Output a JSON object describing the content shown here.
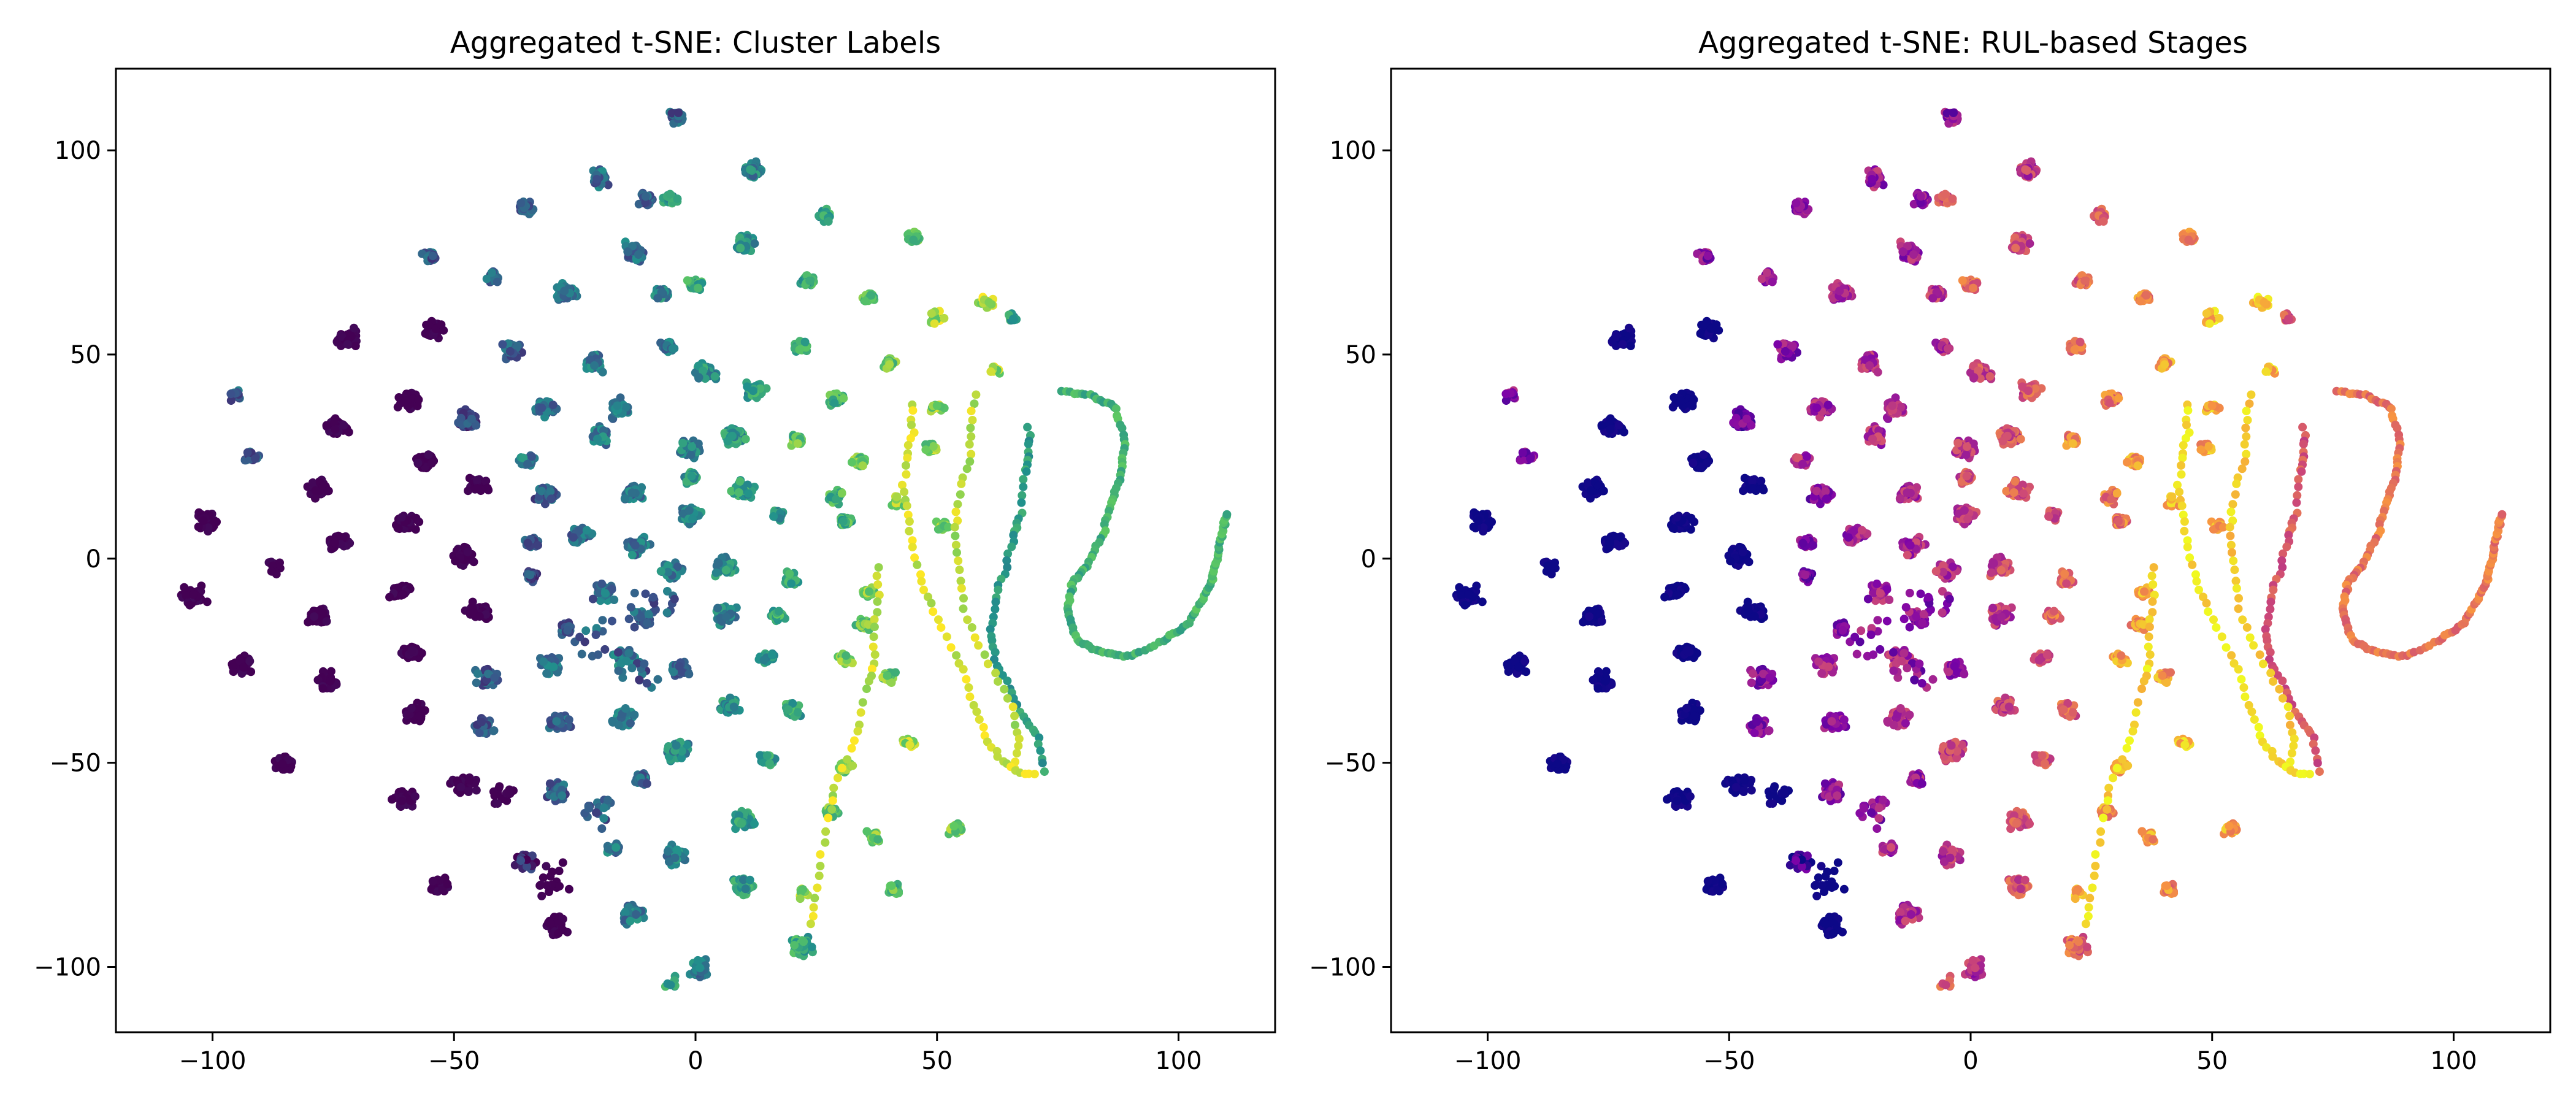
{
  "chart_data": [
    {
      "type": "scatter",
      "title": "Aggregated t-SNE: Cluster Labels",
      "xlabel": "",
      "ylabel": "",
      "xlim": [
        -120,
        120
      ],
      "ylim": [
        -116,
        120
      ],
      "xticks": [
        -100,
        -50,
        0,
        50,
        100
      ],
      "yticks": [
        -100,
        -50,
        0,
        50,
        100
      ],
      "grid": false,
      "colormap": "viridis",
      "colormap_stops": [
        "#440154",
        "#3b528b",
        "#21918c",
        "#5ec962",
        "#fde725"
      ],
      "description_of_points": "Each cluster: x, y, n points, spread, color value (0-1 along colormap)",
      "clusters": [
        [
          -4,
          108,
          35,
          2.5,
          0.3
        ],
        [
          12,
          95,
          40,
          2.5,
          0.45
        ],
        [
          -20,
          93,
          35,
          2.5,
          0.35
        ],
        [
          -35,
          86,
          30,
          2,
          0.3
        ],
        [
          -10,
          88,
          30,
          2,
          0.3
        ],
        [
          -5,
          88,
          30,
          2,
          0.55
        ],
        [
          27,
          84,
          25,
          2,
          0.6
        ],
        [
          45,
          79,
          30,
          2,
          0.75
        ],
        [
          -55,
          74,
          25,
          2,
          0.3
        ],
        [
          -42,
          69,
          25,
          2,
          0.3
        ],
        [
          -13,
          75,
          40,
          3,
          0.35
        ],
        [
          10,
          77,
          40,
          3,
          0.5
        ],
        [
          -27,
          65,
          40,
          3,
          0.35
        ],
        [
          -7,
          65,
          30,
          2,
          0.45
        ],
        [
          0,
          67,
          30,
          2,
          0.6
        ],
        [
          23,
          68,
          30,
          2,
          0.6
        ],
        [
          36,
          64,
          30,
          2,
          0.7
        ],
        [
          50,
          59,
          20,
          2,
          0.85
        ],
        [
          -72,
          54,
          40,
          3,
          0
        ],
        [
          -54,
          56,
          40,
          3,
          0
        ],
        [
          -38,
          51,
          40,
          3,
          0.3
        ],
        [
          -21,
          48,
          40,
          3,
          0.4
        ],
        [
          -6,
          52,
          30,
          2,
          0.4
        ],
        [
          2,
          46,
          40,
          3,
          0.5
        ],
        [
          22,
          52,
          30,
          2,
          0.6
        ],
        [
          40,
          48,
          25,
          2,
          0.75
        ],
        [
          60,
          63,
          15,
          2,
          0.9
        ],
        [
          66,
          59,
          10,
          2,
          0.55
        ],
        [
          62,
          46,
          10,
          1.5,
          0.85
        ],
        [
          -95,
          40,
          15,
          2,
          0.3
        ],
        [
          -59,
          39,
          40,
          3,
          0
        ],
        [
          -47,
          34,
          40,
          3,
          0.2
        ],
        [
          -31,
          37,
          40,
          3,
          0.35
        ],
        [
          -16,
          37,
          40,
          3,
          0.4
        ],
        [
          12,
          41,
          40,
          3,
          0.55
        ],
        [
          29,
          39,
          30,
          2,
          0.65
        ],
        [
          50,
          37,
          15,
          2,
          0.8
        ],
        [
          -74,
          32,
          40,
          3,
          0
        ],
        [
          -56,
          24,
          40,
          3,
          0
        ],
        [
          -35,
          24,
          30,
          2,
          0.4
        ],
        [
          -20,
          30,
          40,
          3,
          0.4
        ],
        [
          -1,
          27,
          40,
          3,
          0.45
        ],
        [
          8,
          30,
          40,
          3,
          0.55
        ],
        [
          21,
          29,
          30,
          2,
          0.7
        ],
        [
          34,
          24,
          30,
          2,
          0.75
        ],
        [
          49,
          27,
          20,
          2,
          0.8
        ],
        [
          -92,
          25,
          20,
          2,
          0.3
        ],
        [
          -78,
          17,
          40,
          3,
          0
        ],
        [
          -60,
          9,
          40,
          3,
          0
        ],
        [
          -45,
          18,
          40,
          3,
          0
        ],
        [
          -31,
          16,
          40,
          3,
          0.3
        ],
        [
          -13,
          16,
          40,
          3,
          0.4
        ],
        [
          -1,
          20,
          30,
          2,
          0.5
        ],
        [
          10,
          17,
          40,
          3,
          0.55
        ],
        [
          29,
          15,
          30,
          2,
          0.65
        ],
        [
          42,
          14,
          20,
          2,
          0.8
        ],
        [
          -101,
          9,
          40,
          3,
          0
        ],
        [
          -74,
          4,
          40,
          3,
          0
        ],
        [
          -48,
          1,
          40,
          3,
          0
        ],
        [
          -34,
          4,
          30,
          2,
          0.3
        ],
        [
          -24,
          6,
          40,
          3,
          0.35
        ],
        [
          -12,
          3,
          40,
          3,
          0.4
        ],
        [
          -1,
          11,
          40,
          3,
          0.45
        ],
        [
          17,
          11,
          30,
          2,
          0.5
        ],
        [
          31,
          9,
          30,
          2,
          0.65
        ],
        [
          51,
          8,
          20,
          2,
          0.8
        ],
        [
          -87,
          -2,
          15,
          2,
          0
        ],
        [
          -104,
          -9,
          40,
          3,
          0
        ],
        [
          -61,
          -8,
          40,
          3,
          0
        ],
        [
          -45,
          -13,
          40,
          3,
          0
        ],
        [
          -34,
          -4,
          30,
          2,
          0.2
        ],
        [
          -19,
          -8,
          40,
          3,
          0.35
        ],
        [
          -5,
          -3,
          40,
          3,
          0.4
        ],
        [
          6,
          -2,
          40,
          3,
          0.5
        ],
        [
          20,
          -5,
          30,
          2,
          0.6
        ],
        [
          36,
          -8,
          20,
          2,
          0.8
        ],
        [
          -78,
          -14,
          40,
          3,
          0
        ],
        [
          -27,
          -17,
          30,
          2,
          0.3
        ],
        [
          -11,
          -15,
          40,
          3,
          0.3
        ],
        [
          6,
          -14,
          40,
          3,
          0.45
        ],
        [
          17,
          -14,
          30,
          2,
          0.6
        ],
        [
          35,
          -16,
          30,
          2,
          0.75
        ],
        [
          -94,
          -26,
          40,
          3,
          0
        ],
        [
          -59,
          -23,
          40,
          3,
          0
        ],
        [
          -43,
          -29,
          40,
          3,
          0.3
        ],
        [
          -30,
          -26,
          40,
          3,
          0.35
        ],
        [
          -15,
          -24,
          40,
          3,
          0.4
        ],
        [
          -3,
          -27,
          40,
          3,
          0.35
        ],
        [
          15,
          -24,
          30,
          2,
          0.55
        ],
        [
          31,
          -25,
          20,
          2,
          0.75
        ],
        [
          -76,
          -30,
          40,
          3,
          0
        ],
        [
          -58,
          -38,
          40,
          3,
          0
        ],
        [
          -44,
          -41,
          40,
          3,
          0.3
        ],
        [
          -28,
          -40,
          40,
          3,
          0.35
        ],
        [
          -15,
          -39,
          40,
          3,
          0.4
        ],
        [
          7,
          -36,
          40,
          3,
          0.5
        ],
        [
          20,
          -37,
          30,
          2,
          0.6
        ],
        [
          40,
          -29,
          20,
          2,
          0.75
        ],
        [
          -85,
          -50,
          40,
          3,
          0
        ],
        [
          -60,
          -59,
          40,
          3,
          0
        ],
        [
          -48,
          -55,
          40,
          3,
          0
        ],
        [
          -29,
          -57,
          40,
          3,
          0.3
        ],
        [
          -11,
          -54,
          30,
          2,
          0.35
        ],
        [
          -4,
          -47,
          40,
          3,
          0.45
        ],
        [
          15,
          -49,
          30,
          2,
          0.55
        ],
        [
          31,
          -51,
          20,
          2,
          0.75
        ],
        [
          44,
          -45,
          20,
          2,
          0.85
        ],
        [
          -53,
          -80,
          40,
          3,
          0
        ],
        [
          -35,
          -74,
          40,
          3,
          0.1
        ],
        [
          -17,
          -71,
          30,
          2,
          0.4
        ],
        [
          -4,
          -73,
          40,
          3,
          0.45
        ],
        [
          10,
          -64,
          40,
          3,
          0.55
        ],
        [
          28,
          -62,
          30,
          2,
          0.75
        ],
        [
          37,
          -68,
          30,
          2,
          0.75
        ],
        [
          54,
          -66,
          30,
          2,
          0.8
        ],
        [
          -29,
          -90,
          40,
          3,
          0
        ],
        [
          -13,
          -87,
          40,
          3,
          0.4
        ],
        [
          10,
          -80,
          40,
          3,
          0.55
        ],
        [
          41,
          -81,
          30,
          2,
          0.7
        ],
        [
          22,
          -95,
          40,
          3,
          0.6
        ],
        [
          1,
          -101,
          40,
          3,
          0.4
        ],
        [
          -5,
          -104,
          10,
          2,
          0.6
        ],
        [
          22,
          -82,
          10,
          2,
          0.8
        ],
        [
          -30,
          -79,
          20,
          5,
          0
        ],
        [
          -20,
          -62,
          20,
          5,
          0.3
        ],
        [
          -40,
          -58,
          15,
          5,
          0
        ],
        [
          -12,
          -28,
          15,
          6,
          0.3
        ],
        [
          -8,
          -10,
          15,
          6,
          0.3
        ],
        [
          -20,
          -20,
          15,
          6,
          0.3
        ]
      ],
      "curves": [
        {
          "points": [
            [
              76,
              41
            ],
            [
              82,
              40
            ],
            [
              87,
              37
            ],
            [
              89,
              28
            ],
            [
              88,
              20
            ],
            [
              86,
              13
            ],
            [
              84,
              5
            ],
            [
              81,
              -2
            ],
            [
              78,
              -6
            ],
            [
              77,
              -13
            ],
            [
              79,
              -20
            ],
            [
              84,
              -23
            ],
            [
              90,
              -24
            ],
            [
              97,
              -20
            ],
            [
              102,
              -16
            ],
            [
              105,
              -10
            ],
            [
              107,
              -5
            ],
            [
              108,
              0
            ],
            [
              109,
              6
            ],
            [
              110,
              11
            ]
          ],
          "n": 140,
          "spread": 0.4,
          "c": 0.65
        },
        {
          "points": [
            [
              69,
              32
            ],
            [
              69,
              25
            ],
            [
              68,
              20
            ],
            [
              67,
              10
            ],
            [
              66,
              5
            ],
            [
              64,
              -3
            ],
            [
              62,
              -10
            ],
            [
              61,
              -18
            ],
            [
              62,
              -25
            ],
            [
              65,
              -32
            ],
            [
              68,
              -39
            ],
            [
              71,
              -44
            ],
            [
              72,
              -52
            ]
          ],
          "n": 60,
          "spread": 0.6,
          "c": 0.55
        },
        {
          "points": [
            [
              58,
              40
            ],
            [
              57,
              33
            ],
            [
              57,
              25
            ],
            [
              55,
              18
            ],
            [
              54,
              10
            ],
            [
              54,
              3
            ],
            [
              55,
              -5
            ],
            [
              56,
              -14
            ],
            [
              59,
              -22
            ],
            [
              63,
              -30
            ],
            [
              66,
              -38
            ],
            [
              67,
              -45
            ],
            [
              66,
              -51
            ]
          ],
          "n": 45,
          "spread": 0.6,
          "c": 0.9
        },
        {
          "points": [
            [
              45,
              38
            ],
            [
              45,
              31
            ],
            [
              44,
              25
            ],
            [
              43,
              17
            ],
            [
              44,
              10
            ],
            [
              45,
              2
            ],
            [
              47,
              -6
            ],
            [
              49,
              -13
            ],
            [
              53,
              -21
            ],
            [
              56,
              -29
            ],
            [
              58,
              -37
            ],
            [
              60,
              -44
            ],
            [
              63,
              -49
            ],
            [
              66,
              -52
            ],
            [
              70,
              -53
            ]
          ],
          "n": 55,
          "spread": 0.6,
          "c": 0.95
        },
        {
          "points": [
            [
              38,
              -2
            ],
            [
              38,
              -10
            ],
            [
              37,
              -17
            ],
            [
              37,
              -25
            ],
            [
              36,
              -30
            ],
            [
              34,
              -40
            ],
            [
              32,
              -47
            ],
            [
              29,
              -56
            ],
            [
              28,
              -62
            ],
            [
              26,
              -72
            ],
            [
              25,
              -82
            ],
            [
              24,
              -90
            ]
          ],
          "n": 40,
          "spread": 0.6,
          "c": 0.92
        }
      ]
    },
    {
      "type": "scatter",
      "title": "Aggregated t-SNE: RUL-based Stages",
      "xlabel": "",
      "ylabel": "",
      "xlim": [
        -120,
        120
      ],
      "ylim": [
        -116,
        120
      ],
      "xticks": [
        -100,
        -50,
        0,
        50,
        100
      ],
      "yticks": [
        -100,
        -50,
        0,
        50,
        100
      ],
      "grid": false,
      "colormap": "plasma",
      "colormap_stops": [
        "#0d0887",
        "#7e03a8",
        "#cc4778",
        "#f89540",
        "#f0f921"
      ]
    }
  ]
}
